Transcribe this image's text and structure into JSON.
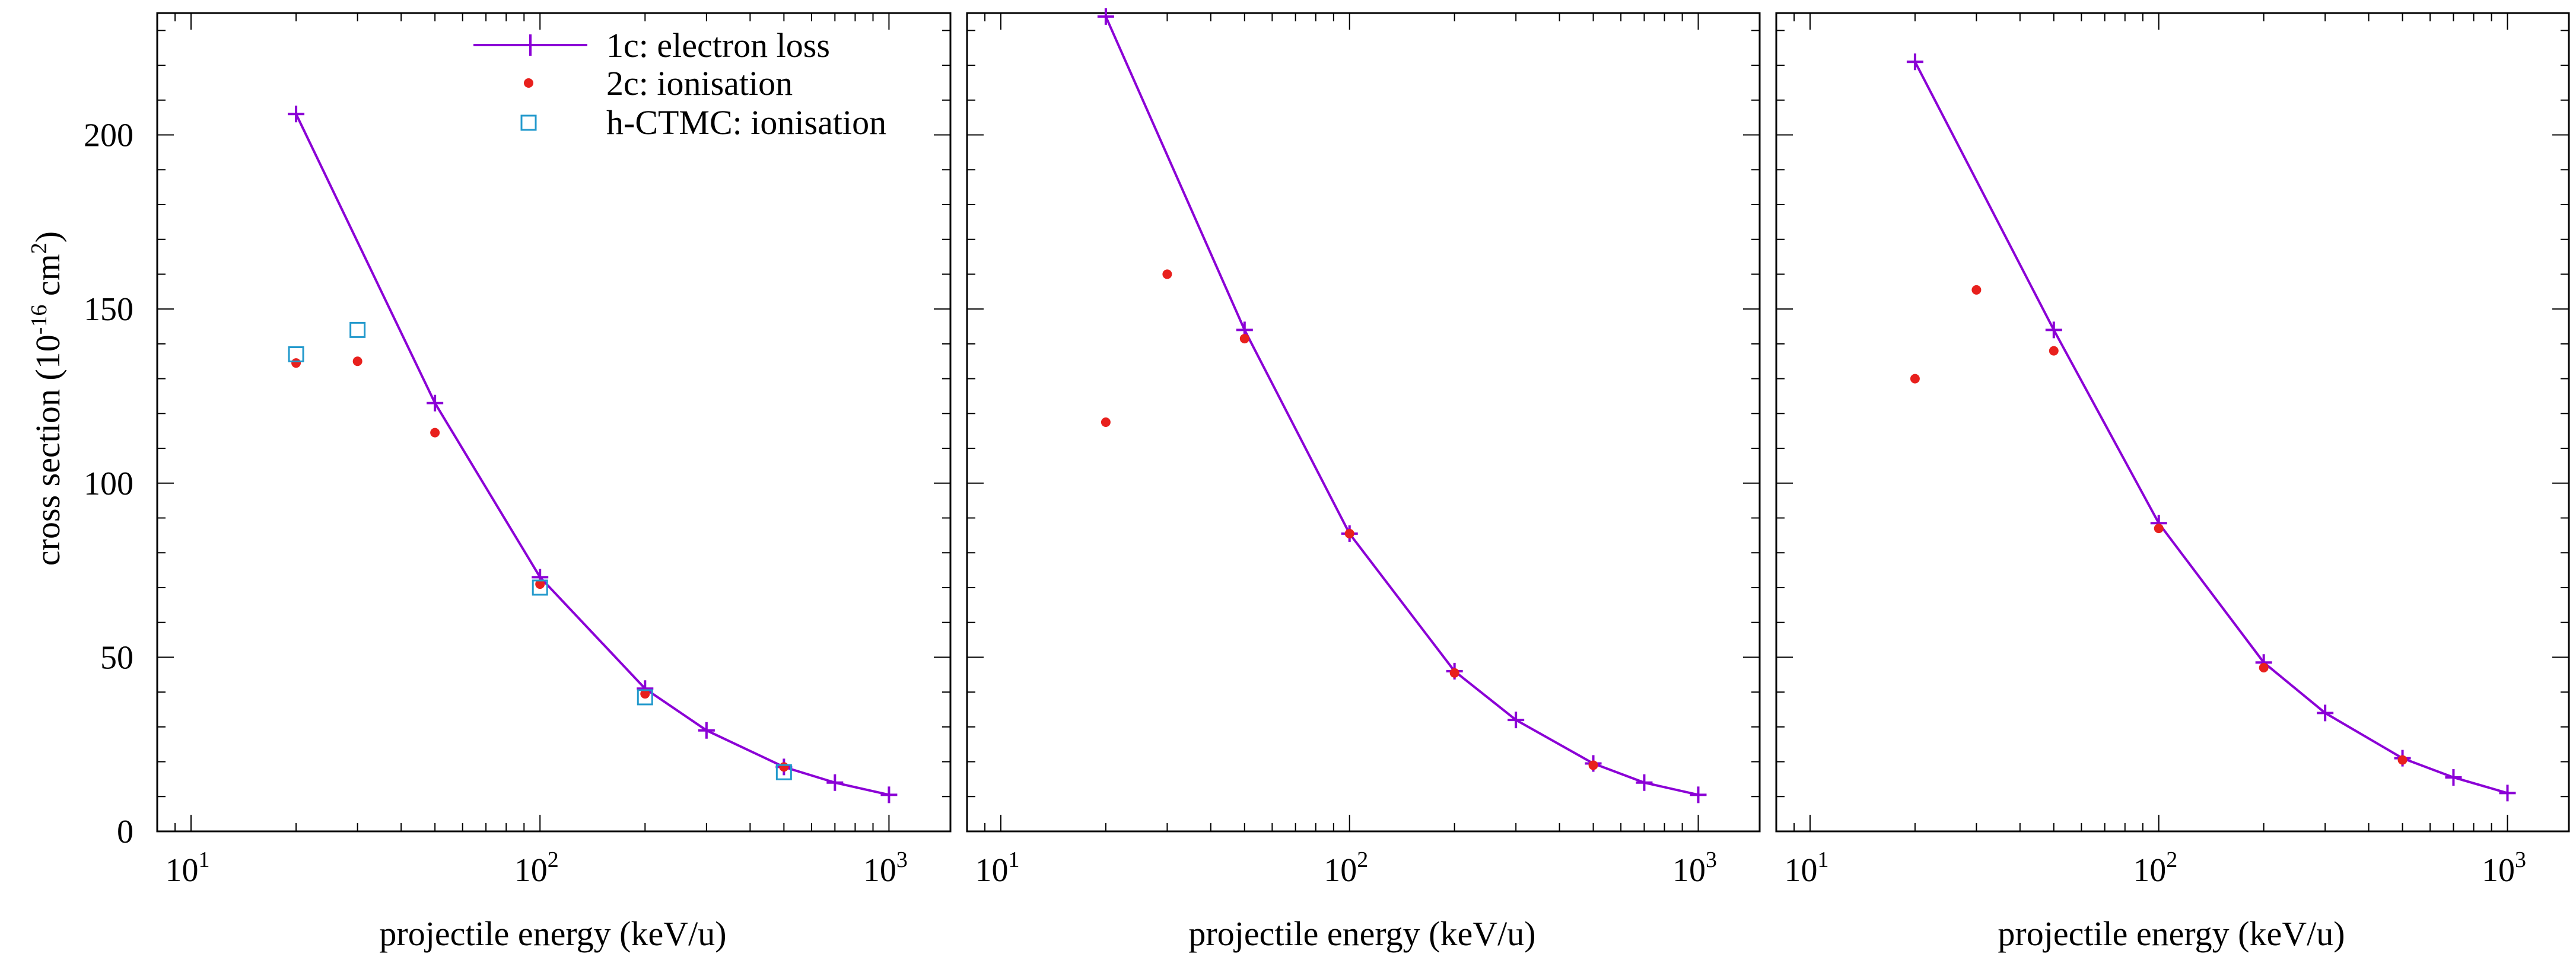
{
  "figure": {
    "ylabel_parts": [
      "cross section (10",
      "-16",
      " cm",
      "2",
      ")"
    ],
    "xlabel": "projectile energy (keV/u)",
    "colors": {
      "line": "#8b00d6",
      "dots": "#e8201d",
      "squares": "#2299cc",
      "axes": "#000000"
    }
  },
  "legend": {
    "entries": [
      {
        "label": "1c: electron loss",
        "marker": "line-plus"
      },
      {
        "label": "2c: ionisation",
        "marker": "red-dot"
      },
      {
        "label": "h-CTMC: ionisation",
        "marker": "open-square"
      }
    ]
  },
  "chart_data": [
    {
      "type": "line",
      "panel": 1,
      "xscale": "log",
      "xlim": [
        8,
        1500
      ],
      "ylim": [
        0,
        235
      ],
      "xticks": [
        10,
        100,
        1000
      ],
      "xtick_labels": [
        {
          "base": "10",
          "exp": "1"
        },
        {
          "base": "10",
          "exp": "2"
        },
        {
          "base": "10",
          "exp": "3"
        }
      ],
      "yticks": [
        0,
        50,
        100,
        150,
        200
      ],
      "ytick_labels": [
        "0",
        "50",
        "100",
        "150",
        "200"
      ],
      "xlabel": "projectile energy (keV/u)",
      "ylabel": "cross section (10-16 cm2)",
      "legend_position": "top-right",
      "series": [
        {
          "name": "1c: electron loss",
          "style": "line-plus",
          "x": [
            20,
            50,
            100,
            200,
            300,
            500,
            700,
            1000
          ],
          "y": [
            206,
            123,
            73,
            41,
            29,
            18.5,
            14,
            10.5
          ]
        },
        {
          "name": "2c: ionisation",
          "style": "red-dot",
          "x": [
            20,
            30,
            50,
            100,
            200,
            500
          ],
          "y": [
            134.5,
            135,
            114.5,
            71,
            39.5,
            18.5
          ]
        },
        {
          "name": "h-CTMC: ionisation",
          "style": "open-square",
          "x": [
            20,
            30,
            100,
            200,
            500
          ],
          "y": [
            137,
            144,
            70,
            38.5,
            17
          ]
        }
      ]
    },
    {
      "type": "line",
      "panel": 2,
      "xscale": "log",
      "xlim": [
        8,
        1500
      ],
      "ylim": [
        0,
        235
      ],
      "xticks": [
        10,
        100,
        1000
      ],
      "xtick_labels": [
        {
          "base": "10",
          "exp": "1"
        },
        {
          "base": "10",
          "exp": "2"
        },
        {
          "base": "10",
          "exp": "3"
        }
      ],
      "yticks": [
        0,
        50,
        100,
        150,
        200
      ],
      "xlabel": "projectile energy (keV/u)",
      "series": [
        {
          "name": "1c: electron loss",
          "style": "line-plus",
          "x": [
            20,
            50,
            100,
            200,
            300,
            500,
            700,
            1000
          ],
          "y": [
            234,
            144,
            85.5,
            46,
            32,
            19.5,
            14,
            10.5
          ]
        },
        {
          "name": "2c: ionisation",
          "style": "red-dot",
          "x": [
            20,
            30,
            50,
            100,
            200,
            500
          ],
          "y": [
            117.5,
            160,
            141.5,
            85.5,
            45.5,
            19
          ]
        }
      ]
    },
    {
      "type": "line",
      "panel": 3,
      "xscale": "log",
      "xlim": [
        8,
        1500
      ],
      "ylim": [
        0,
        235
      ],
      "xticks": [
        10,
        100,
        1000
      ],
      "xtick_labels": [
        {
          "base": "10",
          "exp": "1"
        },
        {
          "base": "10",
          "exp": "2"
        },
        {
          "base": "10",
          "exp": "3"
        }
      ],
      "yticks": [
        0,
        50,
        100,
        150,
        200
      ],
      "xlabel": "projectile energy (keV/u)",
      "series": [
        {
          "name": "1c: electron loss",
          "style": "line-plus",
          "x": [
            20,
            50,
            100,
            200,
            300,
            500,
            700,
            1000
          ],
          "y": [
            221,
            144,
            88.5,
            48.5,
            34,
            21,
            15.5,
            11
          ]
        },
        {
          "name": "2c: ionisation",
          "style": "red-dot",
          "x": [
            20,
            30,
            50,
            100,
            200,
            500
          ],
          "y": [
            130,
            155.5,
            138,
            87,
            47,
            20.5
          ]
        }
      ]
    }
  ]
}
